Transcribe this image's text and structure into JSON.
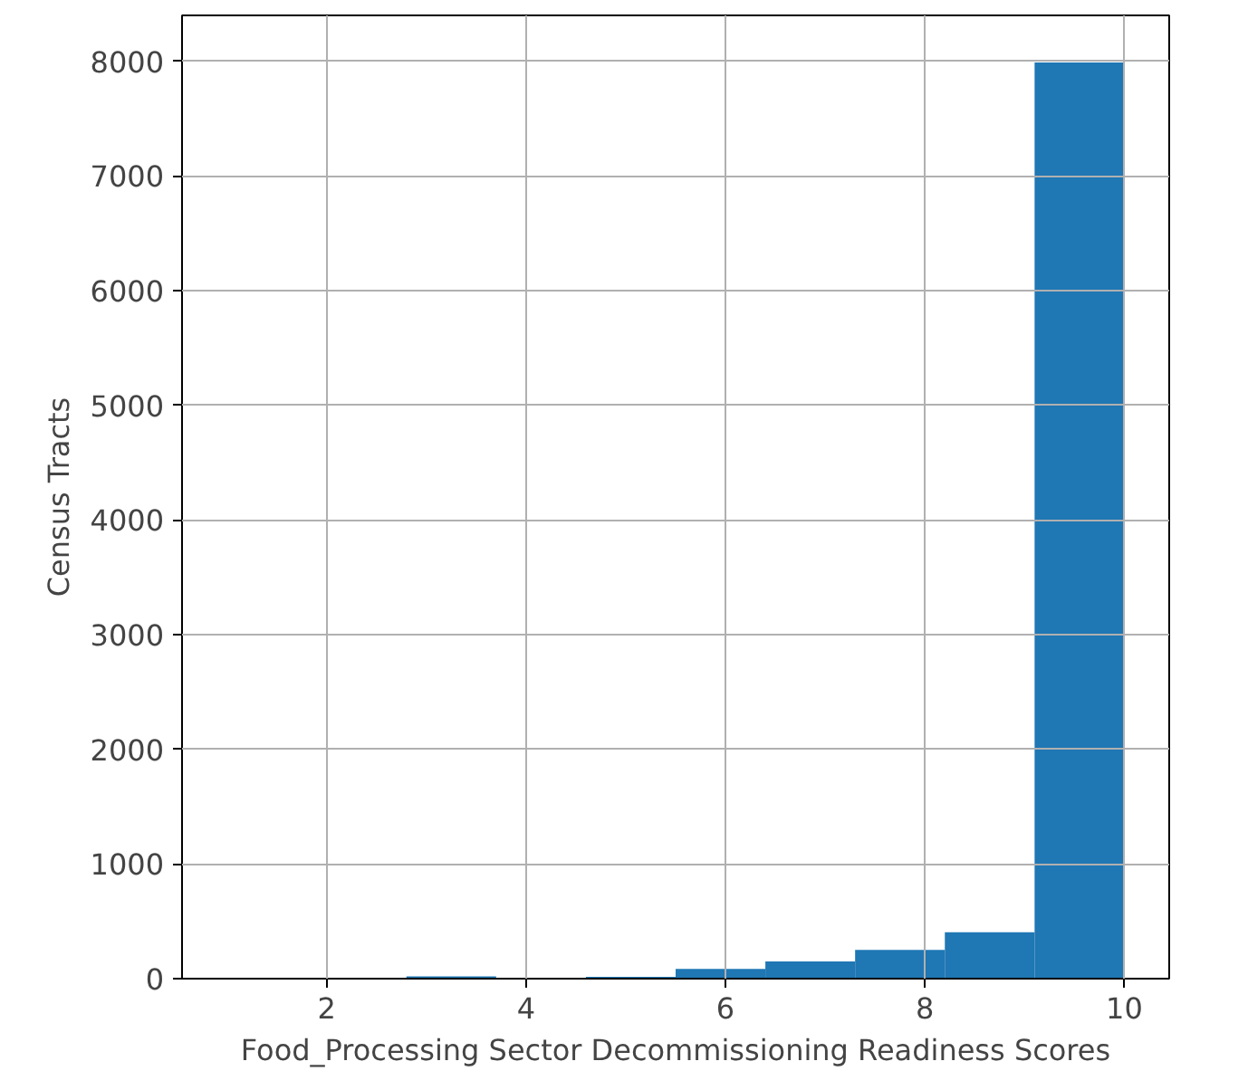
{
  "chart_data": {
    "type": "histogram",
    "xlabel": "Food_Processing Sector Decommissioning Readiness Scores",
    "ylabel": "Census Tracts",
    "bins": [
      1.0,
      1.9,
      2.8,
      3.7,
      4.6,
      5.5,
      6.4,
      7.3,
      8.2,
      9.1,
      10.0
    ],
    "values": [
      0,
      0,
      20,
      5,
      15,
      85,
      150,
      250,
      405,
      7990
    ],
    "color": "#1f77b4",
    "xlim": [
      0.55,
      10.45
    ],
    "ylim": [
      0,
      8400
    ],
    "xticks": [
      2,
      4,
      6,
      8,
      10
    ],
    "yticks": [
      0,
      1000,
      2000,
      3000,
      4000,
      5000,
      6000,
      7000,
      8000
    ],
    "grid": true
  }
}
